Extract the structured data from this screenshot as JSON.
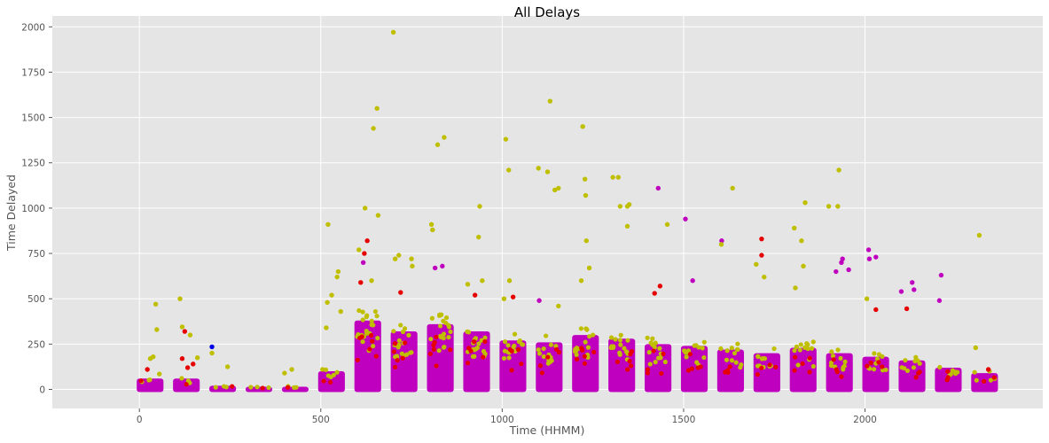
{
  "chart_data": {
    "type": "scatter",
    "title": "All Delays",
    "xlabel": "Time (HHMM)",
    "ylabel": "Time Delayed",
    "xlim": [
      -240,
      2490
    ],
    "ylim": [
      -105,
      2060
    ],
    "xticks": [
      0,
      500,
      1000,
      1500,
      2000
    ],
    "yticks": [
      0,
      250,
      500,
      750,
      1000,
      1250,
      1500,
      1750,
      2000
    ],
    "grid": true,
    "legend": "none",
    "style": "ggplot gray background with white grid",
    "series_colors": {
      "magenta": "#bf00bf",
      "olive": "#bfbf00",
      "red": "#e60000",
      "blue": "#0000e6"
    },
    "time_blocks": [
      {
        "start": 0,
        "end": 59,
        "top": 60
      },
      {
        "start": 100,
        "end": 159,
        "top": 60
      },
      {
        "start": 200,
        "end": 259,
        "top": 20
      },
      {
        "start": 300,
        "end": 359,
        "top": 15
      },
      {
        "start": 400,
        "end": 459,
        "top": 15
      },
      {
        "start": 500,
        "end": 559,
        "top": 100
      },
      {
        "start": 600,
        "end": 659,
        "top": 380
      },
      {
        "start": 700,
        "end": 759,
        "top": 320
      },
      {
        "start": 800,
        "end": 859,
        "top": 360
      },
      {
        "start": 900,
        "end": 959,
        "top": 320
      },
      {
        "start": 1000,
        "end": 1059,
        "top": 270
      },
      {
        "start": 1100,
        "end": 1159,
        "top": 260
      },
      {
        "start": 1200,
        "end": 1259,
        "top": 300
      },
      {
        "start": 1300,
        "end": 1359,
        "top": 280
      },
      {
        "start": 1400,
        "end": 1459,
        "top": 250
      },
      {
        "start": 1500,
        "end": 1559,
        "top": 240
      },
      {
        "start": 1600,
        "end": 1659,
        "top": 220
      },
      {
        "start": 1700,
        "end": 1759,
        "top": 200
      },
      {
        "start": 1800,
        "end": 1859,
        "top": 230
      },
      {
        "start": 1900,
        "end": 1959,
        "top": 200
      },
      {
        "start": 2000,
        "end": 2059,
        "top": 180
      },
      {
        "start": 2100,
        "end": 2159,
        "top": 160
      },
      {
        "start": 2200,
        "end": 2259,
        "top": 120
      },
      {
        "start": 2300,
        "end": 2359,
        "top": 90
      }
    ],
    "points": [
      {
        "x": 22,
        "y": 110,
        "c": "red"
      },
      {
        "x": 45,
        "y": 470,
        "c": "olive"
      },
      {
        "x": 48,
        "y": 330,
        "c": "olive"
      },
      {
        "x": 30,
        "y": 170,
        "c": "olive"
      },
      {
        "x": 38,
        "y": 180,
        "c": "olive"
      },
      {
        "x": 55,
        "y": 85,
        "c": "olive"
      },
      {
        "x": 112,
        "y": 500,
        "c": "olive"
      },
      {
        "x": 118,
        "y": 345,
        "c": "olive"
      },
      {
        "x": 125,
        "y": 320,
        "c": "red"
      },
      {
        "x": 140,
        "y": 300,
        "c": "olive"
      },
      {
        "x": 118,
        "y": 170,
        "c": "red"
      },
      {
        "x": 133,
        "y": 120,
        "c": "red"
      },
      {
        "x": 148,
        "y": 140,
        "c": "red"
      },
      {
        "x": 160,
        "y": 175,
        "c": "olive"
      },
      {
        "x": 200,
        "y": 235,
        "c": "blue"
      },
      {
        "x": 200,
        "y": 200,
        "c": "olive"
      },
      {
        "x": 243,
        "y": 125,
        "c": "olive"
      },
      {
        "x": 400,
        "y": 90,
        "c": "olive"
      },
      {
        "x": 420,
        "y": 110,
        "c": "olive"
      },
      {
        "x": 515,
        "y": 340,
        "c": "olive"
      },
      {
        "x": 518,
        "y": 480,
        "c": "olive"
      },
      {
        "x": 520,
        "y": 910,
        "c": "olive"
      },
      {
        "x": 530,
        "y": 520,
        "c": "olive"
      },
      {
        "x": 545,
        "y": 620,
        "c": "olive"
      },
      {
        "x": 548,
        "y": 650,
        "c": "olive"
      },
      {
        "x": 555,
        "y": 430,
        "c": "olive"
      },
      {
        "x": 605,
        "y": 770,
        "c": "olive"
      },
      {
        "x": 610,
        "y": 590,
        "c": "red"
      },
      {
        "x": 620,
        "y": 750,
        "c": "red"
      },
      {
        "x": 622,
        "y": 1000,
        "c": "olive"
      },
      {
        "x": 628,
        "y": 820,
        "c": "red"
      },
      {
        "x": 640,
        "y": 600,
        "c": "olive"
      },
      {
        "x": 645,
        "y": 1440,
        "c": "olive"
      },
      {
        "x": 655,
        "y": 1550,
        "c": "olive"
      },
      {
        "x": 658,
        "y": 960,
        "c": "olive"
      },
      {
        "x": 617,
        "y": 700,
        "c": "magenta"
      },
      {
        "x": 700,
        "y": 1970,
        "c": "olive"
      },
      {
        "x": 705,
        "y": 720,
        "c": "olive"
      },
      {
        "x": 715,
        "y": 740,
        "c": "olive"
      },
      {
        "x": 720,
        "y": 535,
        "c": "red"
      },
      {
        "x": 750,
        "y": 720,
        "c": "olive"
      },
      {
        "x": 752,
        "y": 680,
        "c": "olive"
      },
      {
        "x": 805,
        "y": 910,
        "c": "olive"
      },
      {
        "x": 808,
        "y": 880,
        "c": "olive"
      },
      {
        "x": 815,
        "y": 670,
        "c": "magenta"
      },
      {
        "x": 822,
        "y": 1350,
        "c": "olive"
      },
      {
        "x": 835,
        "y": 680,
        "c": "magenta"
      },
      {
        "x": 840,
        "y": 1390,
        "c": "olive"
      },
      {
        "x": 905,
        "y": 580,
        "c": "olive"
      },
      {
        "x": 935,
        "y": 840,
        "c": "olive"
      },
      {
        "x": 938,
        "y": 1010,
        "c": "olive"
      },
      {
        "x": 925,
        "y": 520,
        "c": "red"
      },
      {
        "x": 945,
        "y": 600,
        "c": "olive"
      },
      {
        "x": 1005,
        "y": 500,
        "c": "olive"
      },
      {
        "x": 1010,
        "y": 1380,
        "c": "olive"
      },
      {
        "x": 1018,
        "y": 1210,
        "c": "olive"
      },
      {
        "x": 1020,
        "y": 600,
        "c": "olive"
      },
      {
        "x": 1030,
        "y": 510,
        "c": "red"
      },
      {
        "x": 1100,
        "y": 1220,
        "c": "olive"
      },
      {
        "x": 1102,
        "y": 490,
        "c": "magenta"
      },
      {
        "x": 1125,
        "y": 1200,
        "c": "olive"
      },
      {
        "x": 1132,
        "y": 1590,
        "c": "olive"
      },
      {
        "x": 1145,
        "y": 1100,
        "c": "olive"
      },
      {
        "x": 1155,
        "y": 1110,
        "c": "olive"
      },
      {
        "x": 1155,
        "y": 460,
        "c": "olive"
      },
      {
        "x": 1222,
        "y": 1450,
        "c": "olive"
      },
      {
        "x": 1228,
        "y": 1160,
        "c": "olive"
      },
      {
        "x": 1230,
        "y": 1070,
        "c": "olive"
      },
      {
        "x": 1232,
        "y": 820,
        "c": "olive"
      },
      {
        "x": 1240,
        "y": 670,
        "c": "olive"
      },
      {
        "x": 1218,
        "y": 600,
        "c": "olive"
      },
      {
        "x": 1305,
        "y": 1170,
        "c": "olive"
      },
      {
        "x": 1320,
        "y": 1170,
        "c": "olive"
      },
      {
        "x": 1325,
        "y": 1010,
        "c": "olive"
      },
      {
        "x": 1345,
        "y": 1010,
        "c": "olive"
      },
      {
        "x": 1350,
        "y": 1020,
        "c": "olive"
      },
      {
        "x": 1345,
        "y": 900,
        "c": "olive"
      },
      {
        "x": 1430,
        "y": 1110,
        "c": "magenta"
      },
      {
        "x": 1420,
        "y": 530,
        "c": "red"
      },
      {
        "x": 1435,
        "y": 570,
        "c": "red"
      },
      {
        "x": 1455,
        "y": 910,
        "c": "olive"
      },
      {
        "x": 1505,
        "y": 940,
        "c": "magenta"
      },
      {
        "x": 1525,
        "y": 600,
        "c": "magenta"
      },
      {
        "x": 1605,
        "y": 820,
        "c": "magenta"
      },
      {
        "x": 1604,
        "y": 800,
        "c": "olive"
      },
      {
        "x": 1635,
        "y": 1110,
        "c": "olive"
      },
      {
        "x": 1700,
        "y": 690,
        "c": "olive"
      },
      {
        "x": 1715,
        "y": 830,
        "c": "red"
      },
      {
        "x": 1715,
        "y": 740,
        "c": "red"
      },
      {
        "x": 1722,
        "y": 620,
        "c": "olive"
      },
      {
        "x": 1805,
        "y": 890,
        "c": "olive"
      },
      {
        "x": 1808,
        "y": 560,
        "c": "olive"
      },
      {
        "x": 1825,
        "y": 820,
        "c": "olive"
      },
      {
        "x": 1835,
        "y": 1030,
        "c": "olive"
      },
      {
        "x": 1830,
        "y": 680,
        "c": "olive"
      },
      {
        "x": 1900,
        "y": 1010,
        "c": "olive"
      },
      {
        "x": 1925,
        "y": 1010,
        "c": "olive"
      },
      {
        "x": 1928,
        "y": 1210,
        "c": "olive"
      },
      {
        "x": 1920,
        "y": 650,
        "c": "magenta"
      },
      {
        "x": 1935,
        "y": 700,
        "c": "magenta"
      },
      {
        "x": 1938,
        "y": 720,
        "c": "magenta"
      },
      {
        "x": 1955,
        "y": 660,
        "c": "magenta"
      },
      {
        "x": 2005,
        "y": 500,
        "c": "olive"
      },
      {
        "x": 2010,
        "y": 770,
        "c": "magenta"
      },
      {
        "x": 2012,
        "y": 720,
        "c": "magenta"
      },
      {
        "x": 2030,
        "y": 730,
        "c": "magenta"
      },
      {
        "x": 2030,
        "y": 440,
        "c": "red"
      },
      {
        "x": 2100,
        "y": 540,
        "c": "magenta"
      },
      {
        "x": 2115,
        "y": 445,
        "c": "red"
      },
      {
        "x": 2130,
        "y": 590,
        "c": "magenta"
      },
      {
        "x": 2135,
        "y": 550,
        "c": "magenta"
      },
      {
        "x": 2210,
        "y": 630,
        "c": "magenta"
      },
      {
        "x": 2205,
        "y": 490,
        "c": "magenta"
      },
      {
        "x": 2315,
        "y": 850,
        "c": "olive"
      },
      {
        "x": 2305,
        "y": 230,
        "c": "olive"
      },
      {
        "x": 2340,
        "y": 110,
        "c": "red"
      }
    ]
  }
}
